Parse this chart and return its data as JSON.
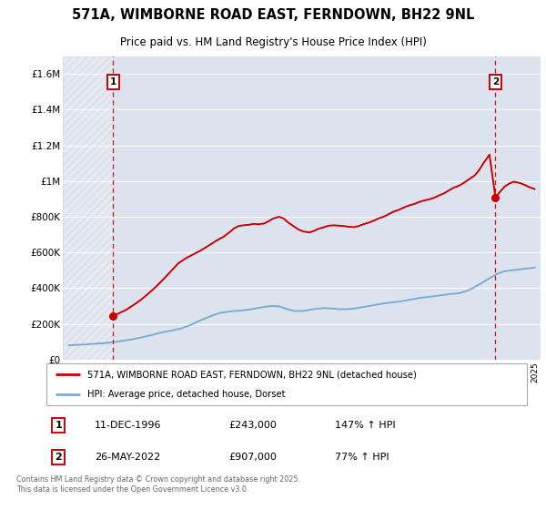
{
  "title": "571A, WIMBORNE ROAD EAST, FERNDOWN, BH22 9NL",
  "subtitle": "Price paid vs. HM Land Registry's House Price Index (HPI)",
  "ylim": [
    0,
    1700000
  ],
  "yticks": [
    0,
    200000,
    400000,
    600000,
    800000,
    1000000,
    1200000,
    1400000,
    1600000
  ],
  "ytick_labels": [
    "£0",
    "£200K",
    "£400K",
    "£600K",
    "£800K",
    "£1M",
    "£1.2M",
    "£1.4M",
    "£1.6M"
  ],
  "xlim_start": 1993.6,
  "xlim_end": 2025.4,
  "sale1_date": 1996.94,
  "sale1_price": 243000,
  "sale1_label": "1",
  "sale1_date_str": "11-DEC-1996",
  "sale1_price_str": "£243,000",
  "sale1_hpi_str": "147% ↑ HPI",
  "sale2_date": 2022.4,
  "sale2_price": 907000,
  "sale2_label": "2",
  "sale2_date_str": "26-MAY-2022",
  "sale2_price_str": "£907,000",
  "sale2_hpi_str": "77% ↑ HPI",
  "legend_line1": "571A, WIMBORNE ROAD EAST, FERNDOWN, BH22 9NL (detached house)",
  "legend_line2": "HPI: Average price, detached house, Dorset",
  "footer": "Contains HM Land Registry data © Crown copyright and database right 2025.\nThis data is licensed under the Open Government Licence v3.0.",
  "red_color": "#cc0000",
  "blue_color": "#7aadcf",
  "background_color": "#ffffff",
  "plot_bg_color": "#dde3ee",
  "grid_color": "#ffffff",
  "hpi_line": {
    "years": [
      1994.0,
      1994.5,
      1995.0,
      1995.5,
      1996.0,
      1996.5,
      1997.0,
      1997.5,
      1998.0,
      1998.5,
      1999.0,
      1999.5,
      2000.0,
      2000.5,
      2001.0,
      2001.5,
      2002.0,
      2002.5,
      2003.0,
      2003.5,
      2004.0,
      2004.5,
      2005.0,
      2005.5,
      2006.0,
      2006.5,
      2007.0,
      2007.5,
      2008.0,
      2008.5,
      2009.0,
      2009.5,
      2010.0,
      2010.5,
      2011.0,
      2011.5,
      2012.0,
      2012.5,
      2013.0,
      2013.5,
      2014.0,
      2014.5,
      2015.0,
      2015.5,
      2016.0,
      2016.5,
      2017.0,
      2017.5,
      2018.0,
      2018.5,
      2019.0,
      2019.5,
      2020.0,
      2020.5,
      2021.0,
      2021.5,
      2022.0,
      2022.5,
      2023.0,
      2023.5,
      2024.0,
      2024.5,
      2025.0
    ],
    "prices": [
      80000,
      82000,
      84000,
      87000,
      90000,
      93000,
      98000,
      104000,
      110000,
      118000,
      127000,
      137000,
      148000,
      157000,
      165000,
      175000,
      190000,
      210000,
      228000,
      245000,
      260000,
      267000,
      272000,
      275000,
      280000,
      287000,
      295000,
      300000,
      298000,
      283000,
      272000,
      272000,
      278000,
      285000,
      288000,
      286000,
      282000,
      282000,
      286000,
      293000,
      300000,
      308000,
      315000,
      320000,
      325000,
      332000,
      340000,
      347000,
      352000,
      357000,
      363000,
      368000,
      372000,
      385000,
      405000,
      430000,
      455000,
      480000,
      495000,
      500000,
      505000,
      510000,
      515000
    ]
  },
  "property_line": {
    "years": [
      1996.94,
      1997.3,
      1997.8,
      1998.3,
      1998.8,
      1999.3,
      1999.8,
      2000.3,
      2000.8,
      2001.3,
      2001.8,
      2002.3,
      2002.8,
      2003.3,
      2003.8,
      2004.3,
      2004.8,
      2005.0,
      2005.3,
      2005.6,
      2006.0,
      2006.3,
      2006.6,
      2007.0,
      2007.3,
      2007.6,
      2008.0,
      2008.3,
      2008.6,
      2009.0,
      2009.3,
      2009.6,
      2010.0,
      2010.3,
      2010.6,
      2011.0,
      2011.3,
      2011.6,
      2012.0,
      2012.3,
      2012.6,
      2013.0,
      2013.3,
      2013.6,
      2014.0,
      2014.3,
      2014.6,
      2015.0,
      2015.3,
      2015.6,
      2016.0,
      2016.3,
      2016.6,
      2017.0,
      2017.3,
      2017.6,
      2018.0,
      2018.3,
      2018.6,
      2019.0,
      2019.3,
      2019.6,
      2020.0,
      2020.3,
      2020.6,
      2021.0,
      2021.3,
      2021.6,
      2022.0,
      2022.4,
      2022.7,
      2023.0,
      2023.3,
      2023.6,
      2024.0,
      2024.3,
      2024.6,
      2025.0
    ],
    "prices": [
      243000,
      258000,
      278000,
      305000,
      335000,
      370000,
      408000,
      450000,
      495000,
      540000,
      568000,
      590000,
      612000,
      638000,
      665000,
      688000,
      720000,
      735000,
      748000,
      752000,
      755000,
      760000,
      758000,
      762000,
      775000,
      790000,
      800000,
      790000,
      768000,
      745000,
      728000,
      718000,
      712000,
      720000,
      732000,
      742000,
      750000,
      752000,
      750000,
      748000,
      744000,
      742000,
      748000,
      758000,
      768000,
      778000,
      790000,
      802000,
      815000,
      828000,
      840000,
      852000,
      862000,
      872000,
      882000,
      890000,
      898000,
      906000,
      918000,
      932000,
      948000,
      962000,
      975000,
      990000,
      1008000,
      1030000,
      1060000,
      1100000,
      1148000,
      907000,
      940000,
      968000,
      985000,
      996000,
      990000,
      980000,
      968000,
      955000
    ]
  }
}
